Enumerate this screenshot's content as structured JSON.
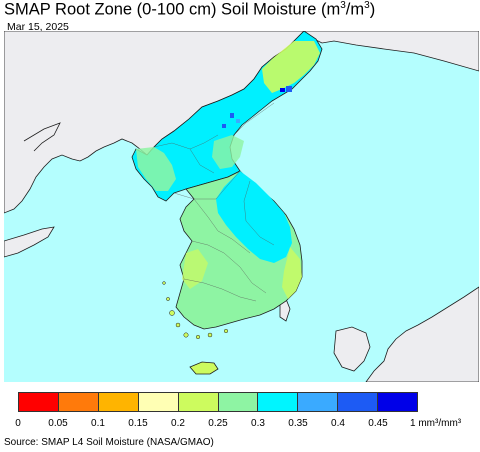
{
  "title": {
    "text": "SMAP Root Zone (0-100 cm) Soil Moisture (m",
    "sup1": "3",
    "mid": "/m",
    "sup2": "3",
    "end": ")"
  },
  "date": "Mar 15, 2025",
  "colors": {
    "sea": "#b4fefe",
    "land_outside": "#ededf0",
    "coast": "#1e1e1e",
    "border": "#555555"
  },
  "legend": {
    "colors": [
      "#ff0000",
      "#ff7a0b",
      "#ffb400",
      "#ffffb4",
      "#cdfb5e",
      "#8ef4a3",
      "#00f5ff",
      "#3aaaff",
      "#1d5bf4",
      "#0000e8"
    ],
    "ticks": [
      "0",
      "0.05",
      "0.1",
      "0.15",
      "0.2",
      "0.25",
      "0.3",
      "0.35",
      "0.4",
      "0.45"
    ],
    "unit": "1 mm³/mm³"
  },
  "source": "Source: SMAP L4 Soil Moisture (NASA/GMAO)"
}
